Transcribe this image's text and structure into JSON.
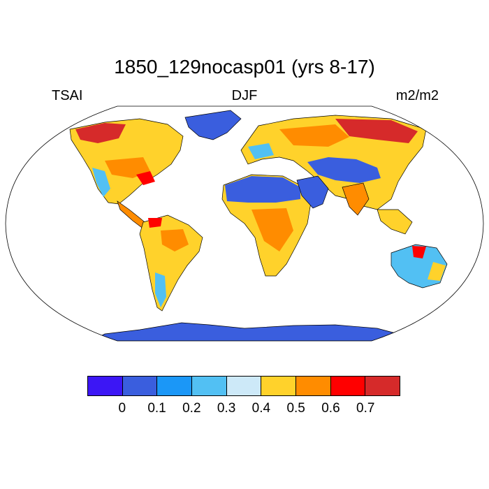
{
  "title": "1850_129nocasp01 (yrs 8-17)",
  "left_label": "TSAI",
  "center_label": "DJF",
  "right_label": "m2/m2",
  "colorbar": {
    "colors": [
      "#3c16f5",
      "#3a5ede",
      "#1b97f7",
      "#52c0f3",
      "#cde9f8",
      "#ffd22b",
      "#ff8c00",
      "#ff0000",
      "#d62a2a"
    ],
    "ticks": [
      "0",
      "0.1",
      "0.2",
      "0.3",
      "0.4",
      "0.5",
      "0.6",
      "0.7"
    ]
  },
  "map": {
    "projection": "Robinson",
    "ocean_color": "#ffffff",
    "coastline_color": "#000000"
  }
}
